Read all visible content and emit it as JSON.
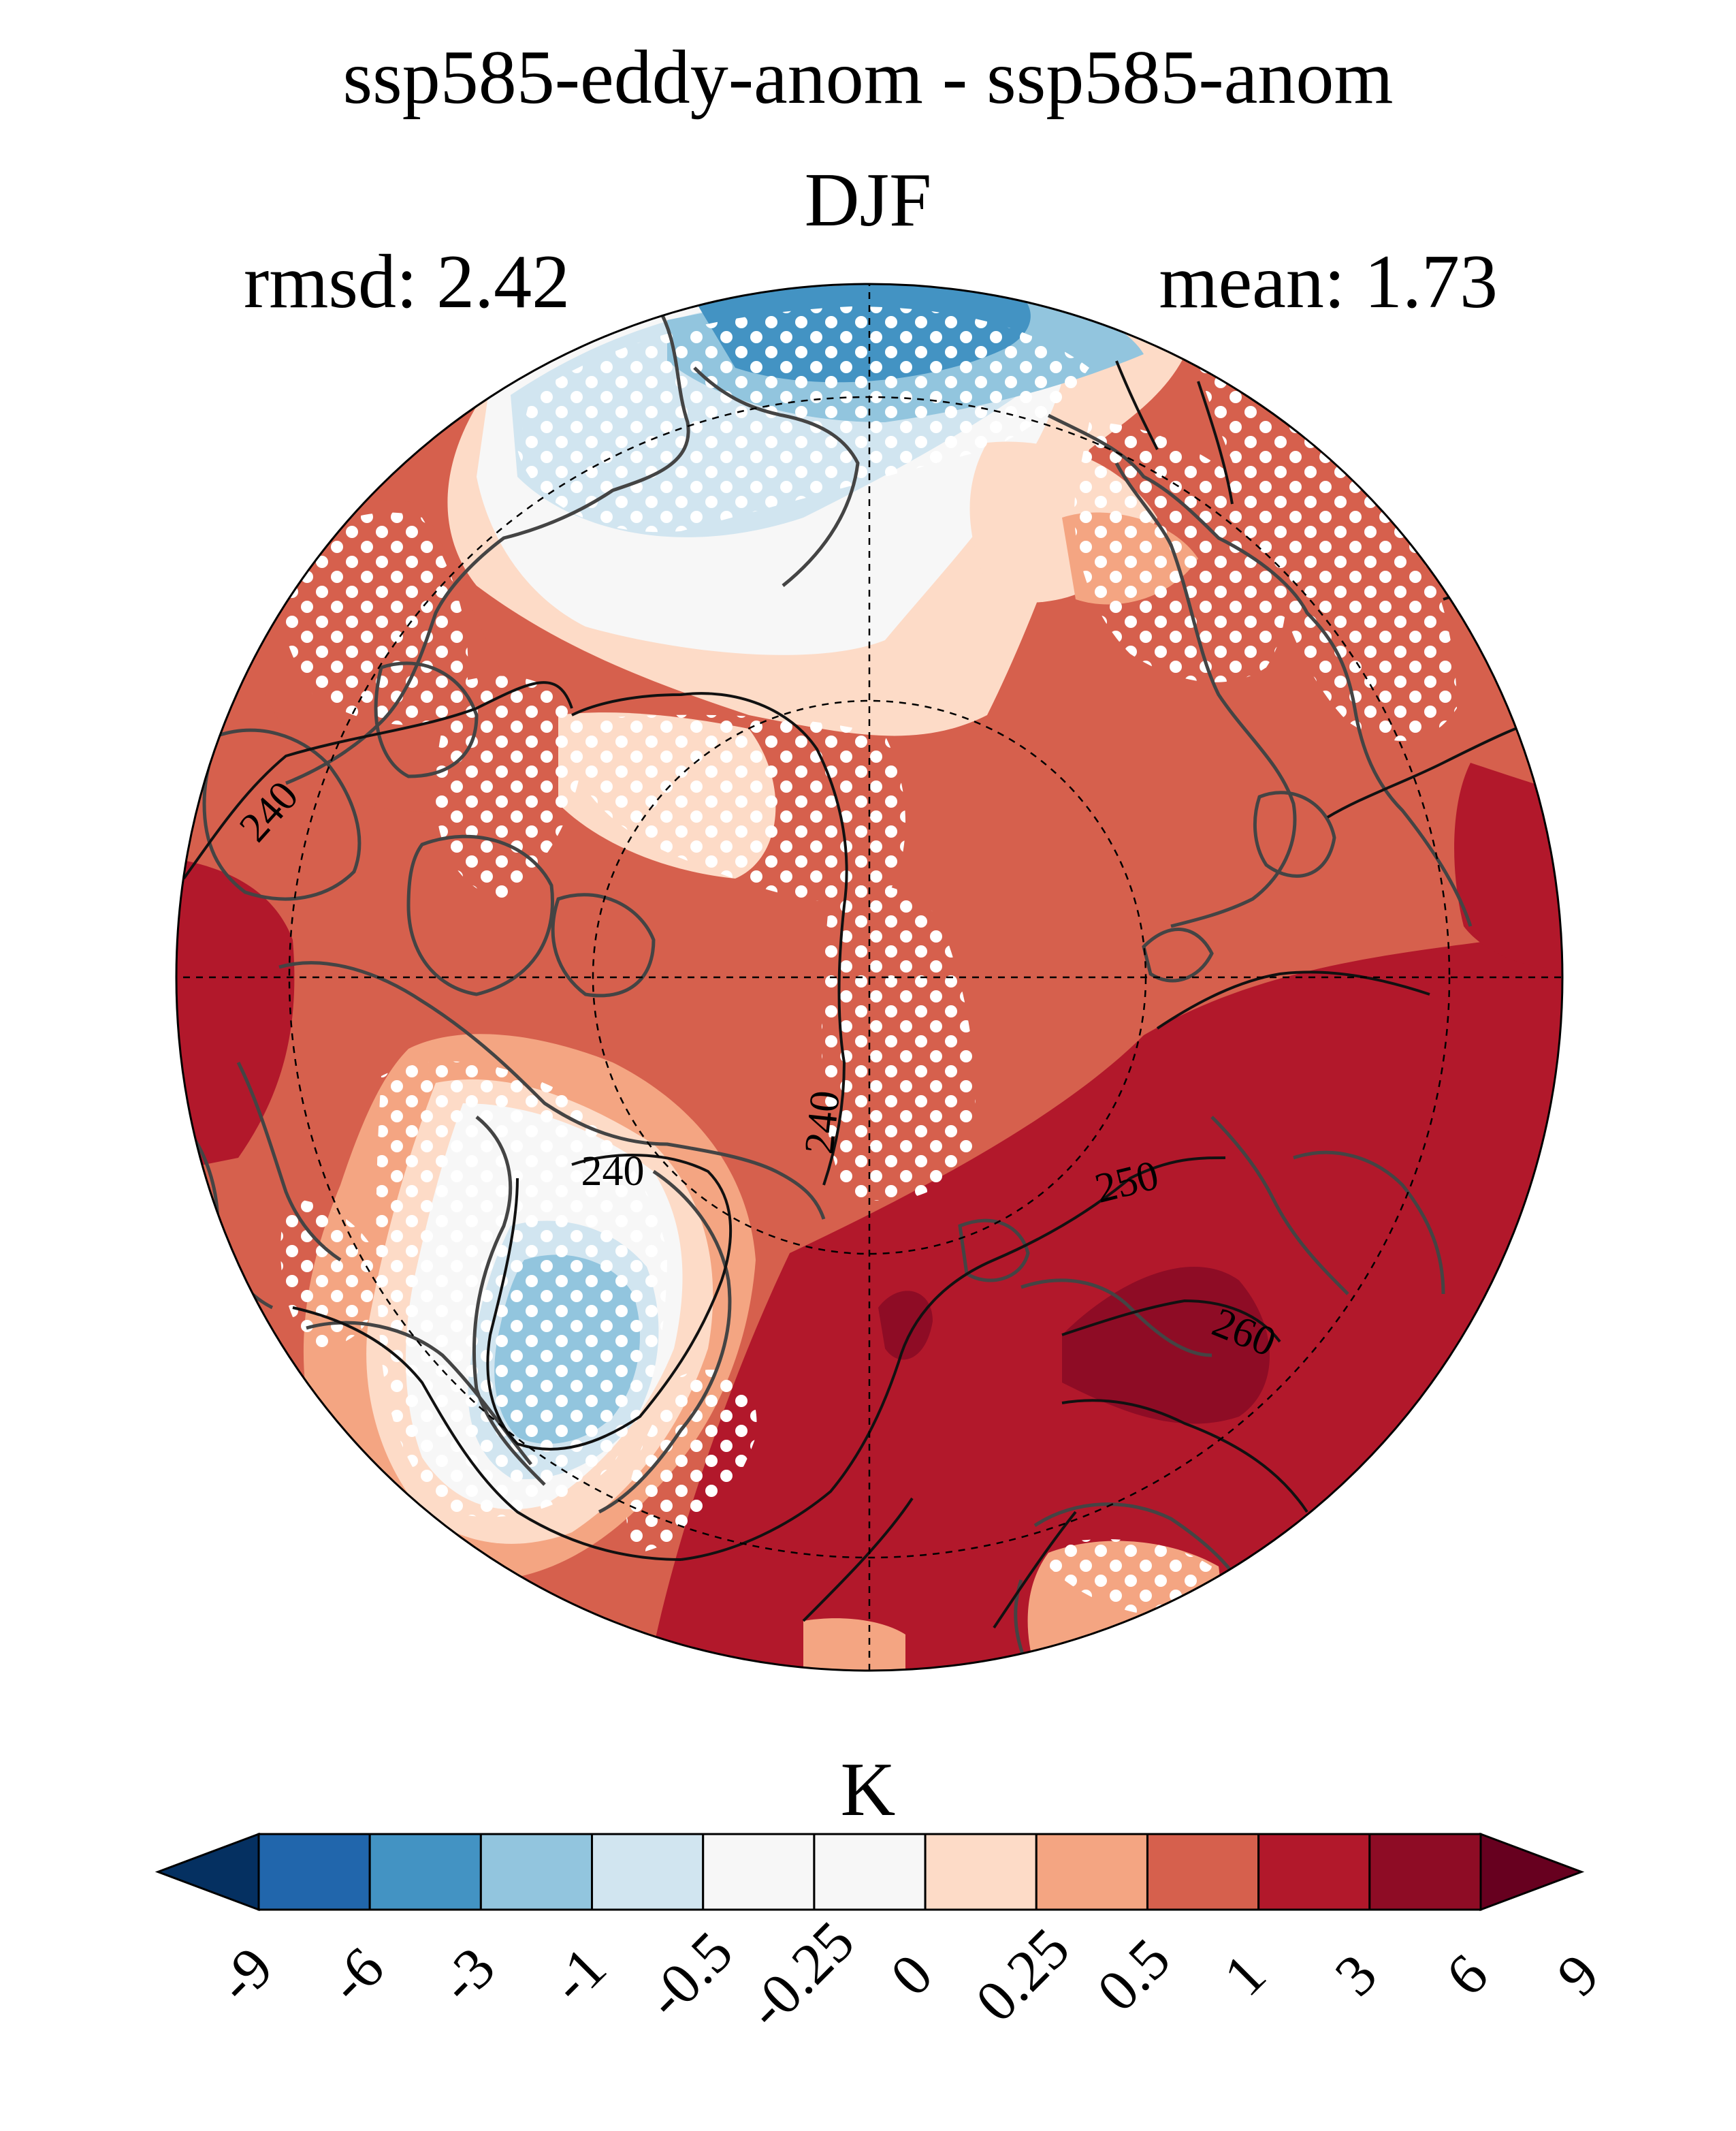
{
  "title": {
    "line1": "ssp585-eddy-anom - ssp585-anom",
    "line2": "DJF"
  },
  "stats": {
    "rmsd": "rmsd: 2.42",
    "mean": "mean: 1.73"
  },
  "map": {
    "projection": "north-polar-stereographic",
    "contour_labels": [
      "240",
      "240",
      "240",
      "240",
      "250",
      "260"
    ],
    "stippling": "white dots (significance)",
    "colors": {
      "coastline": "#444444",
      "contour": "#111111",
      "graticule": "#000000"
    }
  },
  "colorbar": {
    "units": "K",
    "tick_labels": [
      "-9",
      "-6",
      "-3",
      "-1",
      "-0.5",
      "-0.25",
      "0",
      "0.25",
      "0.5",
      "1",
      "3",
      "6",
      "9"
    ],
    "colors": [
      "#053061",
      "#2166ac",
      "#4393c3",
      "#92c5de",
      "#d1e5f0",
      "#f7f7f7",
      "#f7f7f7",
      "#fddbc7",
      "#f4a582",
      "#d6604d",
      "#b2182b",
      "#8e0c25",
      "#67001f"
    ],
    "extend": "both"
  }
}
